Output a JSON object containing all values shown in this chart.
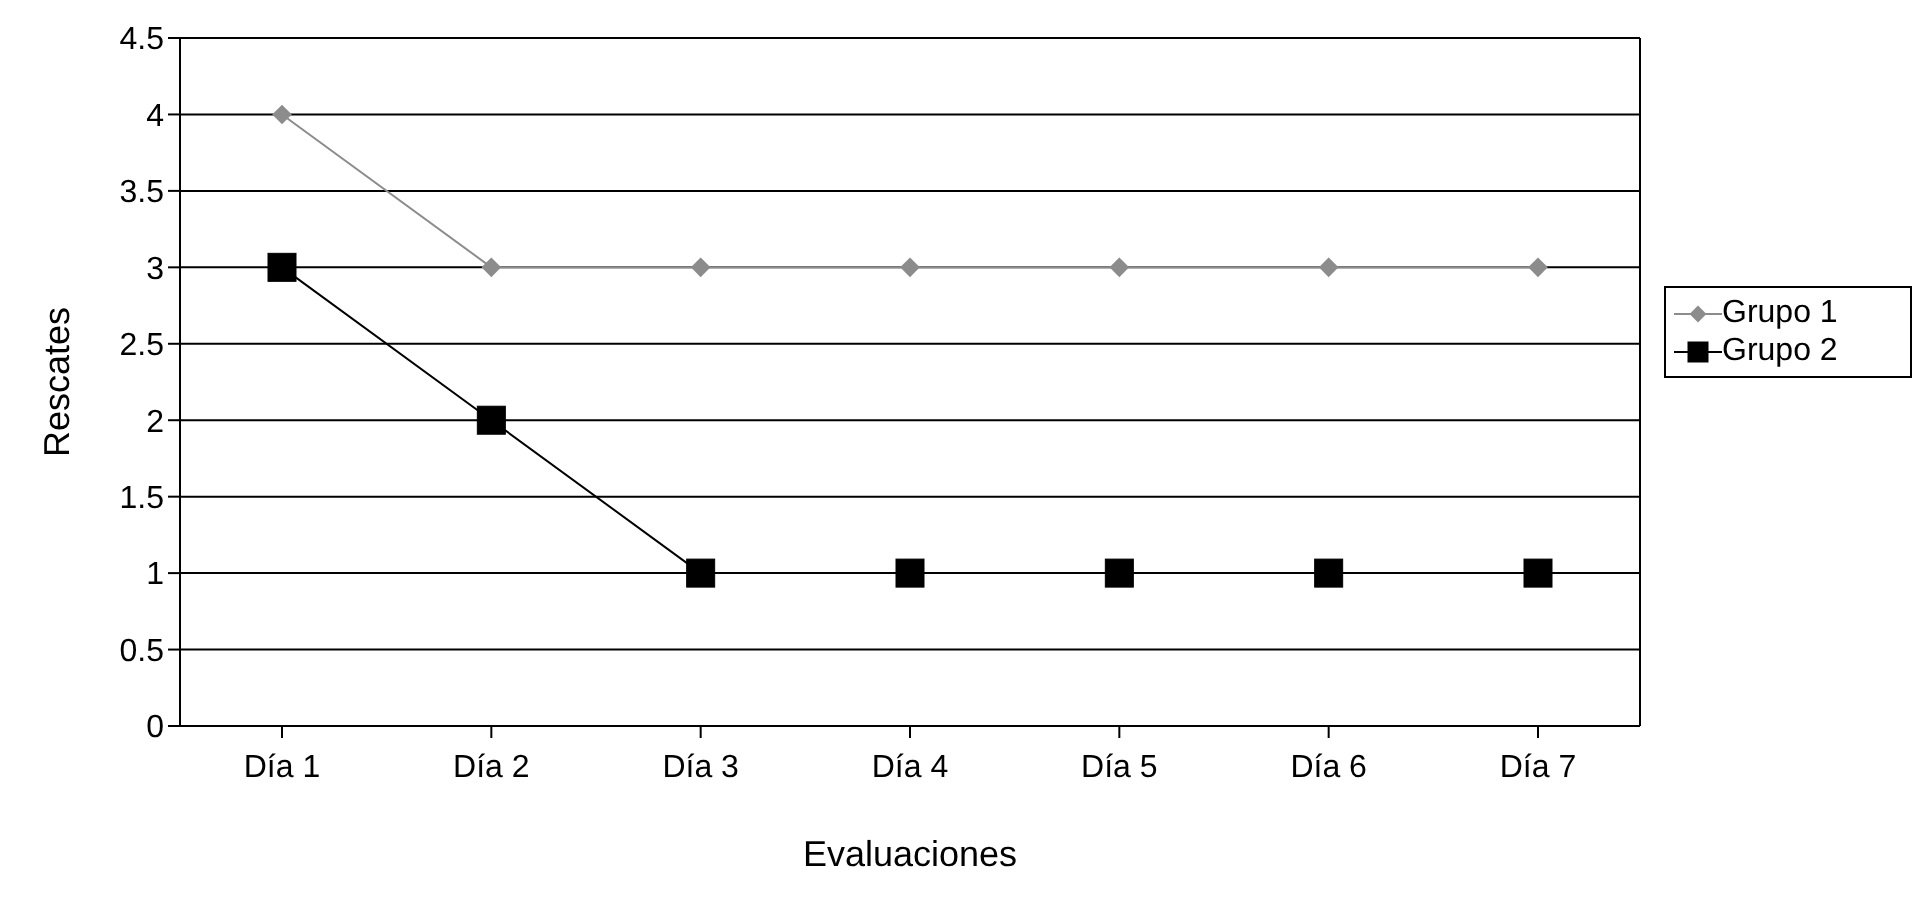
{
  "chart_data": {
    "type": "line",
    "xlabel": "Evaluaciones",
    "ylabel": "Rescates",
    "categories": [
      "Día 1",
      "Día 2",
      "Día 3",
      "Día 4",
      "Día 5",
      "Día 6",
      "Día 7"
    ],
    "series": [
      {
        "name": "Grupo 1",
        "color": "#8c8c8c",
        "marker": "diamond",
        "values": [
          4,
          3,
          3,
          3,
          3,
          3,
          3
        ]
      },
      {
        "name": "Grupo 2",
        "color": "#000000",
        "marker": "square",
        "values": [
          3,
          2,
          1,
          1,
          1,
          1,
          1
        ]
      }
    ],
    "ylim": [
      0,
      4.5
    ],
    "yticks": [
      0,
      0.5,
      1,
      1.5,
      2,
      2.5,
      3,
      3.5,
      4,
      4.5
    ],
    "grid": "y",
    "legend": "right",
    "line_style": "solid"
  }
}
